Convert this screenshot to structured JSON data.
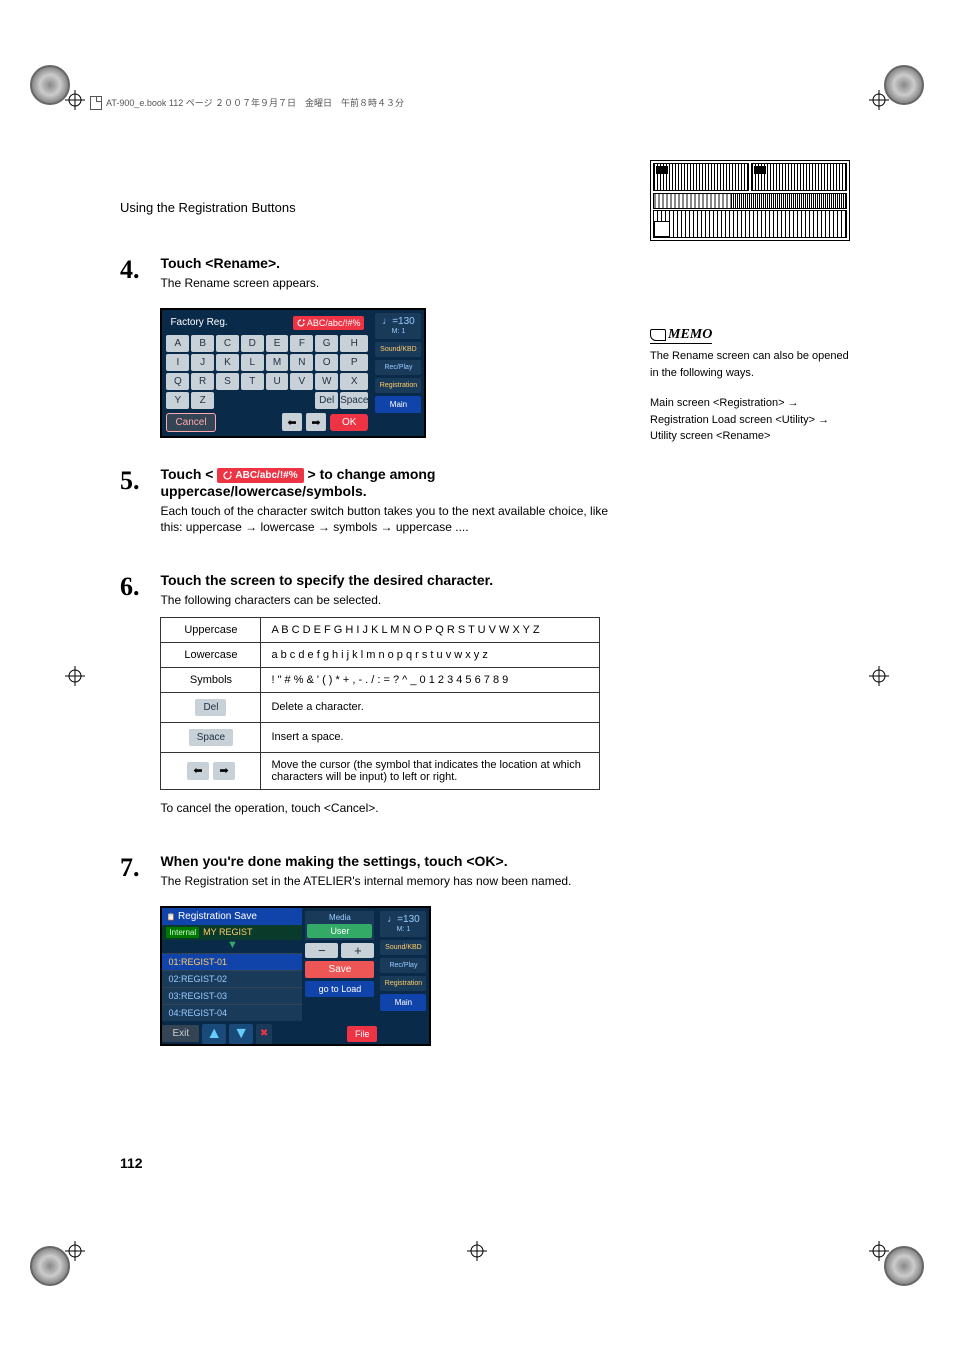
{
  "header": "AT-900_e.book  112 ページ  ２００７年９月７日　金曜日　午前８時４３分",
  "section_title": "Using the Registration Buttons",
  "steps": {
    "s4": {
      "num": "4.",
      "title": "Touch <Rename>.",
      "text": "The Rename screen appears."
    },
    "s5": {
      "num": "5.",
      "title_pre": "Touch < ",
      "title_post": " > to change among uppercase/lowercase/symbols.",
      "badge": "ABC/abc/!#%",
      "text": "Each touch of the character switch button takes you to the next available choice, like this: uppercase → lowercase → symbols → uppercase ...."
    },
    "s6": {
      "num": "6.",
      "title": "Touch the screen to specify the desired character.",
      "text": "The following characters can be selected.",
      "cancel_text": "To cancel the operation, touch <Cancel>."
    },
    "s7": {
      "num": "7.",
      "title": "When you're done making the settings, touch <OK>.",
      "text": "The Registration set in the ATELIER's internal memory has now been named."
    }
  },
  "rename_screen": {
    "title": "Factory Reg.",
    "switch": "ABC/abc/!#%",
    "keys": [
      "A",
      "B",
      "C",
      "D",
      "E",
      "F",
      "G",
      "H",
      "I",
      "J",
      "K",
      "L",
      "M",
      "N",
      "O",
      "P",
      "Q",
      "R",
      "S",
      "T",
      "U",
      "V",
      "W",
      "X",
      "Y",
      "Z"
    ],
    "del": "Del",
    "space": "Space",
    "cancel": "Cancel",
    "ok": "OK",
    "tempo": "♩=130",
    "tempo_m": "M:    1",
    "side": {
      "sound": "Sound/KBD",
      "rec": "Rec/Play",
      "reg": "Registration",
      "main": "Main"
    }
  },
  "char_table": {
    "rows": [
      {
        "label": "Uppercase",
        "val": "A B C D E F G H I J K L M N O P Q R S T U V W X Y Z"
      },
      {
        "label": "Lowercase",
        "val": "a b c d e f g h i j k l m n o p q r s t u v w x y z"
      },
      {
        "label": "Symbols",
        "val": "! \" # % & ' ( ) * + , - . / : = ? ^ _ 0 1 2 3 4 5 6 7 8 9"
      }
    ],
    "del_label": "Del",
    "del_desc": "Delete a character.",
    "space_label": "Space",
    "space_desc": "Insert a space.",
    "arrow_desc": "Move the cursor (the symbol that indicates the location at which characters will be input) to left or right."
  },
  "save_screen": {
    "header": "Registration Save",
    "internal": "Internal",
    "internal_name": "MY REGIST",
    "rows": [
      "01:REGIST-01",
      "02:REGIST-02",
      "03:REGIST-03",
      "04:REGIST-04"
    ],
    "media": "Media",
    "user": "User",
    "save": "Save",
    "goload": "go to Load",
    "exit": "Exit",
    "file": "File",
    "tempo": "♩=130",
    "tempo_m": "M:    1",
    "side": {
      "sound": "Sound/KBD",
      "rec": "Rec/Play",
      "reg": "Registration",
      "main": "Main"
    }
  },
  "memo": {
    "label": "MEMO",
    "text1": "The Rename screen can also be opened in the following ways.",
    "text2": "Main screen <Registration> → Registration Load screen <Utility> → Utility screen <Rename>"
  },
  "page_num": "112"
}
